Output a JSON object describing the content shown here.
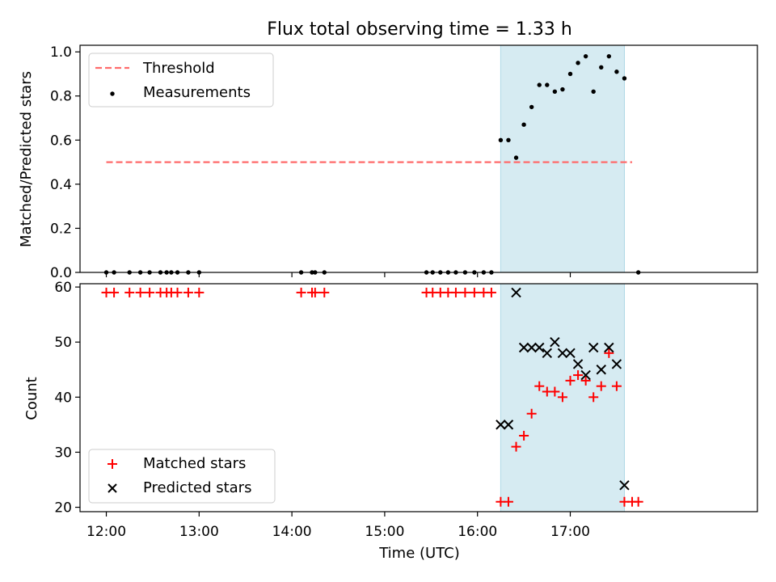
{
  "title": "Flux total observing time = 1.33 h",
  "chart_data": [
    {
      "type": "scatter",
      "ylabel": "Matched/Predicted stars",
      "xlim": [
        "11:43",
        "19:01"
      ],
      "ylim": [
        0,
        1.03
      ],
      "x_ticks": [
        "12:00",
        "13:00",
        "14:00",
        "15:00",
        "16:00",
        "17:00"
      ],
      "y_ticks": [
        "0.0",
        "0.2",
        "0.4",
        "0.6",
        "0.8",
        "1.0"
      ],
      "legend_position": "upper left",
      "highlight_span": [
        "16:15",
        "17:35"
      ],
      "highlight_color": "#add8e6",
      "threshold": {
        "name": "Threshold",
        "y": 0.5,
        "x_range": [
          "12:00",
          "17:40"
        ],
        "color": "#ff6b6b"
      },
      "series": [
        {
          "name": "Measurements",
          "color": "#000000",
          "x": [
            "12:00",
            "12:05",
            "12:15",
            "12:22",
            "12:28",
            "12:35",
            "12:39",
            "12:42",
            "12:46",
            "12:53",
            "13:00",
            "14:06",
            "14:13",
            "14:15",
            "14:21",
            "15:27",
            "15:31",
            "15:36",
            "15:41",
            "15:46",
            "15:52",
            "15:58",
            "16:04",
            "16:09",
            "16:15",
            "16:20",
            "16:25",
            "16:30",
            "16:35",
            "16:40",
            "16:45",
            "16:50",
            "16:55",
            "17:00",
            "17:05",
            "17:10",
            "17:15",
            "17:20",
            "17:25",
            "17:30",
            "17:35",
            "17:44"
          ],
          "y": [
            0,
            0,
            0,
            0,
            0,
            0,
            0,
            0,
            0,
            0,
            0,
            0,
            0,
            0,
            0,
            0,
            0,
            0,
            0,
            0,
            0,
            0,
            0,
            0,
            0.6,
            0.6,
            0.52,
            0.67,
            0.75,
            0.85,
            0.85,
            0.82,
            0.83,
            0.9,
            0.95,
            0.98,
            0.82,
            0.93,
            0.98,
            0.91,
            0.88,
            0.0
          ]
        }
      ]
    },
    {
      "type": "scatter",
      "xlabel": "Time (UTC)",
      "ylabel": "Count",
      "xlim": [
        "11:43",
        "19:01"
      ],
      "ylim": [
        19.2,
        60.6
      ],
      "x_ticks": [
        "12:00",
        "13:00",
        "14:00",
        "15:00",
        "16:00",
        "17:00"
      ],
      "y_ticks": [
        "20",
        "30",
        "40",
        "50",
        "60"
      ],
      "legend_position": "lower left",
      "highlight_span": [
        "16:15",
        "17:35"
      ],
      "highlight_color": "#add8e6",
      "series": [
        {
          "name": "Matched stars",
          "marker": "plus",
          "color": "#ff0000",
          "x": [
            "12:00",
            "12:05",
            "12:15",
            "12:22",
            "12:28",
            "12:35",
            "12:39",
            "12:42",
            "12:46",
            "12:53",
            "13:00",
            "14:06",
            "14:13",
            "14:15",
            "14:21",
            "15:27",
            "15:31",
            "15:36",
            "15:41",
            "15:46",
            "15:52",
            "15:58",
            "16:04",
            "16:09",
            "16:15",
            "16:20",
            "16:25",
            "16:30",
            "16:35",
            "16:40",
            "16:45",
            "16:50",
            "16:55",
            "17:00",
            "17:05",
            "17:10",
            "17:15",
            "17:20",
            "17:25",
            "17:30",
            "17:35",
            "17:40",
            "17:44"
          ],
          "y": [
            59,
            59,
            59,
            59,
            59,
            59,
            59,
            59,
            59,
            59,
            59,
            59,
            59,
            59,
            59,
            59,
            59,
            59,
            59,
            59,
            59,
            59,
            59,
            59,
            21,
            21,
            31,
            33,
            37,
            42,
            41,
            41,
            40,
            43,
            44,
            43,
            40,
            42,
            48,
            42,
            21,
            21,
            21
          ]
        },
        {
          "name": "Predicted stars",
          "marker": "x",
          "color": "#000000",
          "x": [
            "16:15",
            "16:20",
            "16:25",
            "16:30",
            "16:35",
            "16:40",
            "16:45",
            "16:50",
            "16:55",
            "17:00",
            "17:05",
            "17:10",
            "17:15",
            "17:20",
            "17:25",
            "17:30",
            "17:35"
          ],
          "y": [
            35,
            35,
            59,
            49,
            49,
            49,
            48,
            50,
            48,
            48,
            46,
            44,
            49,
            45,
            49,
            46,
            24
          ]
        }
      ]
    }
  ]
}
